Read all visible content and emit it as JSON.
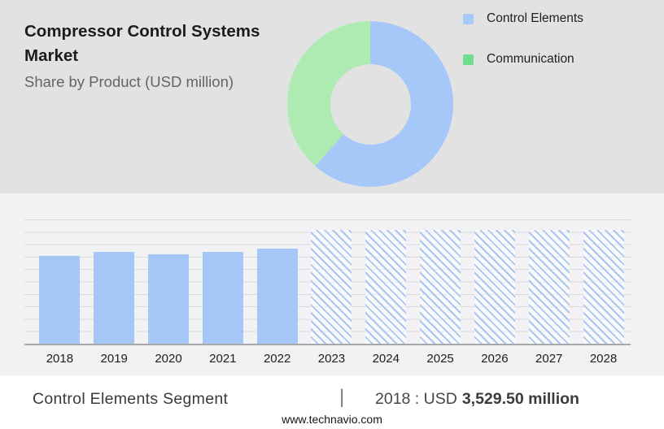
{
  "header": {
    "title": "Compressor Control Systems Market",
    "subtitle": "Share by Product (USD million)"
  },
  "legend": {
    "items": [
      {
        "label": "Control Elements",
        "color": "#a8caf9"
      },
      {
        "label": "Communication",
        "color": "#70dd8d"
      }
    ]
  },
  "chart_data": [
    {
      "type": "pie",
      "donut": true,
      "title": "Share by Product (USD million)",
      "labels": [
        "Control Elements",
        "Communication"
      ],
      "values": [
        61.5,
        38.5
      ],
      "units": "percent share, estimated from arc angles",
      "colors": [
        "#a6c8f8",
        "#aeebb3"
      ],
      "legend_position": "right"
    },
    {
      "type": "bar",
      "categories": [
        "2018",
        "2019",
        "2020",
        "2021",
        "2022",
        "2023",
        "2024",
        "2025",
        "2026",
        "2027",
        "2028"
      ],
      "series": [
        {
          "name": "Control Elements segment size (USD million)",
          "values": [
            3529.5,
            3680,
            3580,
            3685,
            3815,
            4575,
            4575,
            4575,
            4575,
            4575,
            4575
          ]
        }
      ],
      "value_note": "2018 = 3,529.50 labeled in footer; other values estimated from bar heights",
      "forecast_start_index": 5,
      "ylim": [
        0,
        5000
      ],
      "grid": true,
      "xlabel": "",
      "ylabel": "",
      "bar_color": "#a4c7f8",
      "forecast_hatch_color": "#a9c6f2"
    }
  ],
  "footer": {
    "segment_label": "Control Elements Segment",
    "divider": "|",
    "value_prefix": "2018 : USD",
    "value_bold": "3,529.50 million",
    "website": "www.technavio.com"
  }
}
